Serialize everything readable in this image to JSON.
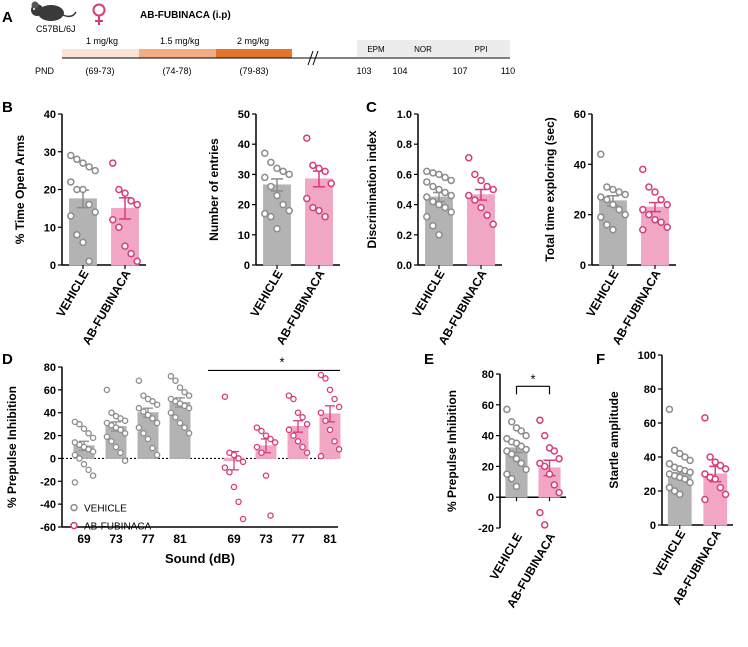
{
  "colors": {
    "vehicle_fill": "#b3b3b3",
    "vehicle_stroke": "#8c8c8c",
    "fub_fill": "#f1a7c3",
    "fub_stroke": "#d63c7c",
    "dose1": "#fbe4d7",
    "dose2": "#f3ad85",
    "dose3": "#e8732a",
    "behavior_box": "#ececec"
  },
  "panel_labels": [
    "A",
    "B",
    "C",
    "D",
    "E",
    "F"
  ],
  "panel_a": {
    "strain": "C57BL/6J",
    "sex_icon": "female-symbol",
    "drug": "AB-FUBINACA (i.p)",
    "doses": [
      {
        "label": "1 mg/kg",
        "range": "(69-73)"
      },
      {
        "label": "1.5 mg/kg",
        "range": "(74-78)"
      },
      {
        "label": "2 mg/kg",
        "range": "(79-83)"
      }
    ],
    "tests": [
      "EPM",
      "NOR",
      "PPI"
    ],
    "pnd_label": "PND",
    "pnd_days": [
      "103",
      "104",
      "107",
      "110"
    ]
  },
  "groups": [
    "VEHICLE",
    "AB-FUBINACA"
  ],
  "chart_data": [
    {
      "id": "B1",
      "type": "bar",
      "ylabel": "% Time Open Arms",
      "ylim": [
        0,
        40
      ],
      "yticks": [
        0,
        10,
        20,
        30,
        40
      ],
      "categories": [
        "VEHICLE",
        "AB-FUBINACA"
      ],
      "means": [
        17.5,
        15
      ],
      "sem": [
        2.3,
        2.8
      ],
      "points": [
        [
          29,
          28,
          27,
          26,
          25,
          22,
          20,
          20,
          16,
          14,
          13,
          8,
          6,
          1
        ],
        [
          27,
          20,
          19,
          17,
          16,
          12,
          10,
          5,
          3,
          1
        ]
      ]
    },
    {
      "id": "B2",
      "type": "bar",
      "ylabel": "Number of entries",
      "ylim": [
        0,
        50
      ],
      "yticks": [
        0,
        10,
        20,
        30,
        40,
        50
      ],
      "categories": [
        "VEHICLE",
        "AB-FUBINACA"
      ],
      "means": [
        26.5,
        28.5
      ],
      "sem": [
        2.0,
        2.6
      ],
      "points": [
        [
          37,
          34,
          32,
          31,
          30,
          29,
          26,
          23,
          20,
          18,
          17,
          16,
          12
        ],
        [
          42,
          33,
          32,
          31,
          27,
          22,
          19,
          18,
          16
        ]
      ]
    },
    {
      "id": "C1",
      "type": "bar",
      "ylabel": "Discrimination index",
      "ylim": [
        0,
        1.0
      ],
      "yticks": [
        0,
        0.2,
        0.4,
        0.6,
        0.8,
        1.0
      ],
      "categories": [
        "VEHICLE",
        "AB-FUBINACA"
      ],
      "means": [
        0.45,
        0.465
      ],
      "sem": [
        0.03,
        0.035
      ],
      "points": [
        [
          0.62,
          0.61,
          0.6,
          0.58,
          0.56,
          0.55,
          0.52,
          0.5,
          0.48,
          0.46,
          0.45,
          0.42,
          0.4,
          0.38,
          0.35,
          0.32,
          0.26,
          0.2
        ],
        [
          0.71,
          0.6,
          0.56,
          0.52,
          0.5,
          0.46,
          0.43,
          0.38,
          0.33,
          0.27
        ]
      ]
    },
    {
      "id": "C2",
      "type": "bar",
      "ylabel": "Total time exploring (sec)",
      "ylim": [
        0,
        60
      ],
      "yticks": [
        0,
        20,
        40,
        60
      ],
      "categories": [
        "VEHICLE",
        "AB-FUBINACA"
      ],
      "means": [
        25.5,
        23
      ],
      "sem": [
        2.0,
        1.8
      ],
      "points": [
        [
          44,
          31,
          30,
          29,
          28,
          27,
          26,
          24,
          22,
          20,
          19,
          16,
          14
        ],
        [
          38,
          31,
          29,
          26,
          24,
          22,
          20,
          18,
          17,
          15,
          14
        ]
      ]
    },
    {
      "id": "D",
      "type": "grouped-bar",
      "ylabel": "% Prepulse Inhibition",
      "xlabel": "Sound (dB)",
      "ylim": [
        -60,
        80
      ],
      "yticks": [
        -60,
        -40,
        -20,
        0,
        20,
        40,
        60,
        80
      ],
      "categories": [
        "69",
        "73",
        "77",
        "81"
      ],
      "significance": "*",
      "legend": {
        "position": "bottom-left",
        "entries": [
          "VEHICLE",
          "AB-FUBINACA"
        ]
      },
      "series": [
        {
          "name": "VEHICLE",
          "means": [
            11,
            28,
            40,
            49
          ],
          "sem": [
            4,
            4,
            4,
            4
          ],
          "points": [
            [
              32,
              30,
              26,
              22,
              18,
              14,
              12,
              10,
              8,
              6,
              3,
              0,
              -5,
              -10,
              -15,
              -21
            ],
            [
              60,
              40,
              37,
              35,
              33,
              31,
              29,
              27,
              25,
              22,
              19,
              15,
              10,
              5,
              -2
            ],
            [
              68,
              55,
              52,
              50,
              47,
              44,
              41,
              38,
              35,
              31,
              27,
              22,
              17,
              9,
              3
            ],
            [
              72,
              68,
              62,
              58,
              55,
              52,
              50,
              48,
              46,
              44,
              40,
              36,
              31,
              27,
              22
            ]
          ]
        },
        {
          "name": "AB-FUBINACA",
          "means": [
            -2,
            11,
            28,
            39
          ],
          "sem": [
            8,
            6,
            5,
            7
          ],
          "points": [
            [
              54,
              5,
              3,
              0,
              -3,
              -8,
              -12,
              -25,
              -38,
              -53
            ],
            [
              27,
              24,
              20,
              17,
              14,
              10,
              5,
              -15,
              -50
            ],
            [
              55,
              52,
              40,
              36,
              30,
              25,
              20,
              15,
              10,
              5
            ],
            [
              73,
              70,
              60,
              52,
              45,
              40,
              33,
              25,
              15,
              8,
              2
            ]
          ]
        }
      ]
    },
    {
      "id": "E",
      "type": "bar",
      "ylabel": "% Prepulse Inhibition",
      "ylim": [
        -20,
        80
      ],
      "yticks": [
        -20,
        0,
        20,
        40,
        60,
        80
      ],
      "categories": [
        "VEHICLE",
        "AB-FUBINACA"
      ],
      "significance": "*",
      "means": [
        32,
        19
      ],
      "sem": [
        3,
        5
      ],
      "points": [
        [
          57,
          49,
          45,
          43,
          40,
          38,
          36,
          35,
          33,
          31,
          30,
          28,
          25,
          22,
          18,
          15,
          12,
          7
        ],
        [
          50,
          40,
          32,
          30,
          25,
          22,
          20,
          15,
          8,
          3,
          -10,
          -18
        ]
      ]
    },
    {
      "id": "F",
      "type": "bar",
      "ylabel": "Startle amplitude",
      "ylim": [
        0,
        100
      ],
      "yticks": [
        0,
        20,
        40,
        60,
        80,
        100
      ],
      "categories": [
        "VEHICLE",
        "AB-FUBINACA"
      ],
      "means": [
        31,
        30
      ],
      "sem": [
        2.5,
        4.5
      ],
      "points": [
        [
          68,
          44,
          42,
          40,
          38,
          36,
          34,
          33,
          32,
          31,
          30,
          29,
          28,
          27,
          25,
          22,
          20,
          18
        ],
        [
          63,
          40,
          37,
          35,
          33,
          30,
          28,
          27,
          22,
          18,
          15
        ]
      ]
    }
  ]
}
